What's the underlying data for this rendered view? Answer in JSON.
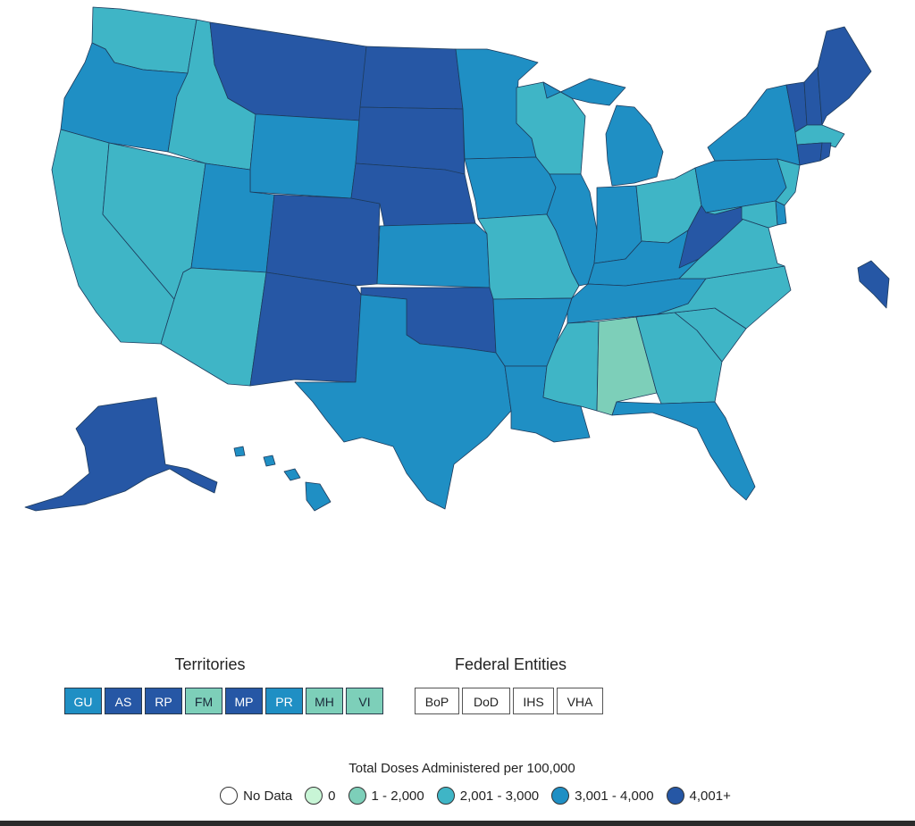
{
  "colors": {
    "no_data": "#ffffff",
    "zero": "#c8f5d6",
    "b1": "#7dcfb9",
    "b2": "#3fb5c6",
    "b3": "#1f8fc4",
    "b4": "#2657a5"
  },
  "territories": {
    "title": "Territories",
    "items": [
      {
        "label": "GU",
        "level": "b3"
      },
      {
        "label": "AS",
        "level": "b4"
      },
      {
        "label": "RP",
        "level": "b4"
      },
      {
        "label": "FM",
        "level": "b1"
      },
      {
        "label": "MP",
        "level": "b4"
      },
      {
        "label": "PR",
        "level": "b3"
      },
      {
        "label": "MH",
        "level": "b1"
      },
      {
        "label": "VI",
        "level": "b1"
      }
    ]
  },
  "federal": {
    "title": "Federal Entities",
    "items": [
      {
        "label": "BoP"
      },
      {
        "label": "DoD"
      },
      {
        "label": "IHS"
      },
      {
        "label": "VHA"
      }
    ]
  },
  "legend": {
    "title": "Total Doses Administered per 100,000",
    "items": [
      {
        "label": "No Data",
        "level": "no_data"
      },
      {
        "label": "0",
        "level": "zero"
      },
      {
        "label": "1 - 2,000",
        "level": "b1"
      },
      {
        "label": "2,001 - 3,000",
        "level": "b2"
      },
      {
        "label": "3,001 - 4,000",
        "level": "b3"
      },
      {
        "label": "4,001+",
        "level": "b4"
      }
    ]
  },
  "states": {
    "WA": "b2",
    "OR": "b3",
    "CA": "b2",
    "ID": "b2",
    "NV": "b2",
    "MT": "b4",
    "WY": "b3",
    "UT": "b3",
    "AZ": "b2",
    "CO": "b4",
    "NM": "b4",
    "ND": "b4",
    "SD": "b4",
    "NE": "b4",
    "KS": "b3",
    "OK": "b4",
    "TX": "b3",
    "MN": "b3",
    "IA": "b3",
    "MO": "b2",
    "AR": "b3",
    "LA": "b3",
    "WI": "b2",
    "IL": "b3",
    "MI": "b3",
    "IN": "b3",
    "OH": "b2",
    "KY": "b3",
    "TN": "b3",
    "MS": "b2",
    "AL": "b1",
    "GA": "b2",
    "FL": "b3",
    "SC": "b2",
    "NC": "b2",
    "VA": "b2",
    "WV": "b4",
    "PA": "b3",
    "NY": "b3",
    "VT": "b4",
    "NH": "b4",
    "ME": "b4",
    "MA": "b2",
    "CT": "b4",
    "RI": "b4",
    "NJ": "b2",
    "DE": "b3",
    "MD": "b2",
    "DC": "b4",
    "AK": "b4",
    "HI": "b3"
  }
}
